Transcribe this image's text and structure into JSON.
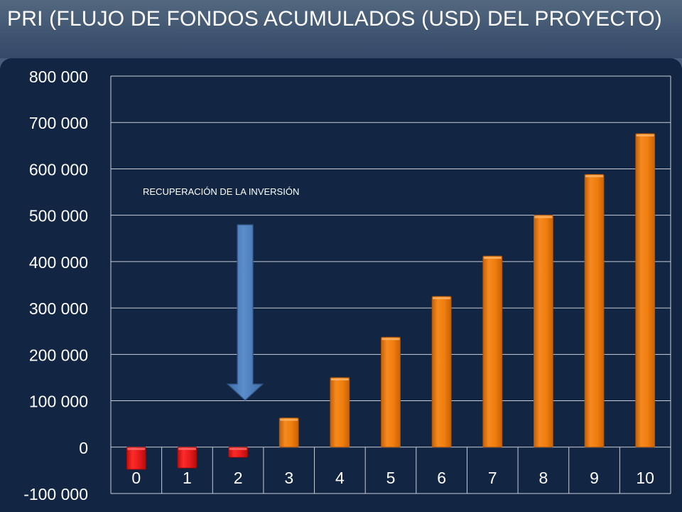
{
  "title": "PRI (FLUJO DE FONDOS ACUMULADOS (USD) DEL PROYECTO)",
  "chart_data": {
    "type": "bar",
    "title": "PRI (FLUJO DE FONDOS ACUMULADOS (USD) DEL PROYECTO)",
    "xlabel": "",
    "ylabel": "",
    "categories": [
      "0",
      "1",
      "2",
      "3",
      "4",
      "5",
      "6",
      "7",
      "8",
      "9",
      "10"
    ],
    "values": [
      -48000,
      -45000,
      -22000,
      63000,
      150000,
      237000,
      325000,
      412000,
      500000,
      588000,
      676000
    ],
    "ylim": [
      -100000,
      800000
    ],
    "y_ticks": [
      -100000,
      0,
      100000,
      200000,
      300000,
      400000,
      500000,
      600000,
      700000,
      800000
    ],
    "y_tick_labels": [
      "-100 000",
      "0",
      "100 000",
      "200 000",
      "300 000",
      "400 000",
      "500 000",
      "600 000",
      "700 000",
      "800 000"
    ],
    "grid": true,
    "legend": "none",
    "colors": {
      "negative": "#e31b1b",
      "positive": "#f07d0e",
      "arrow": "#4f81bd",
      "grid": "#c9ced8",
      "text": "#ffffff"
    },
    "annotations": [
      {
        "text": "RECUPERACIÓN  DE LA INVERSIÓN",
        "arrow_points_to_category": "2"
      }
    ]
  }
}
